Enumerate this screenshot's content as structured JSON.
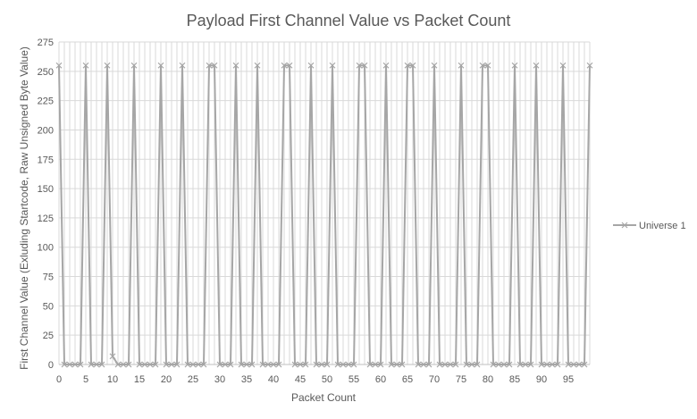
{
  "chart_data": {
    "type": "line",
    "title": "Payload First Channel Value vs Packet Count",
    "xlabel": "Packet Count",
    "ylabel": "First Channel Value (Exluding Startcode, Raw Unsigned Byte Value)",
    "xlim": [
      0,
      99
    ],
    "ylim": [
      0,
      275
    ],
    "x_tick_labels": [
      "0",
      "5",
      "10",
      "15",
      "20",
      "25",
      "30",
      "35",
      "40",
      "45",
      "50",
      "55",
      "60",
      "65",
      "70",
      "75",
      "80",
      "85",
      "90",
      "95"
    ],
    "y_tick_labels": [
      "0",
      "25",
      "50",
      "75",
      "100",
      "125",
      "150",
      "175",
      "200",
      "225",
      "250",
      "275"
    ],
    "grid": true,
    "legend_position": "right",
    "marker": "x",
    "colors": {
      "series": "#a6a6a6",
      "grid": "#d9d9d9",
      "text": "#595959",
      "axis": "#bfbfbf"
    },
    "series": [
      {
        "name": "Universe 1",
        "x": [
          0,
          1,
          2,
          3,
          4,
          5,
          6,
          7,
          8,
          9,
          10,
          11,
          12,
          13,
          14,
          15,
          16,
          17,
          18,
          19,
          20,
          21,
          22,
          23,
          24,
          25,
          26,
          27,
          28,
          29,
          30,
          31,
          32,
          33,
          34,
          35,
          36,
          37,
          38,
          39,
          40,
          41,
          42,
          43,
          44,
          45,
          46,
          47,
          48,
          49,
          50,
          51,
          52,
          53,
          54,
          55,
          56,
          57,
          58,
          59,
          60,
          61,
          62,
          63,
          64,
          65,
          66,
          67,
          68,
          69,
          70,
          71,
          72,
          73,
          74,
          75,
          76,
          77,
          78,
          79,
          80,
          81,
          82,
          83,
          84,
          85,
          86,
          87,
          88,
          89,
          90,
          91,
          92,
          93,
          94,
          95,
          96,
          97,
          98,
          99
        ],
        "values": [
          255,
          0,
          0,
          0,
          0,
          255,
          0,
          0,
          0,
          255,
          7,
          0,
          0,
          0,
          255,
          0,
          0,
          0,
          0,
          255,
          0,
          0,
          0,
          255,
          0,
          0,
          0,
          0,
          255,
          255,
          0,
          0,
          0,
          255,
          0,
          0,
          0,
          255,
          0,
          0,
          0,
          0,
          255,
          255,
          0,
          0,
          0,
          255,
          0,
          0,
          0,
          255,
          0,
          0,
          0,
          0,
          255,
          255,
          0,
          0,
          0,
          255,
          0,
          0,
          0,
          255,
          255,
          0,
          0,
          0,
          255,
          0,
          0,
          0,
          0,
          255,
          0,
          0,
          0,
          255,
          255,
          0,
          0,
          0,
          0,
          255,
          0,
          0,
          0,
          255,
          0,
          0,
          0,
          0,
          255,
          0,
          0,
          0,
          0,
          255
        ]
      }
    ]
  }
}
